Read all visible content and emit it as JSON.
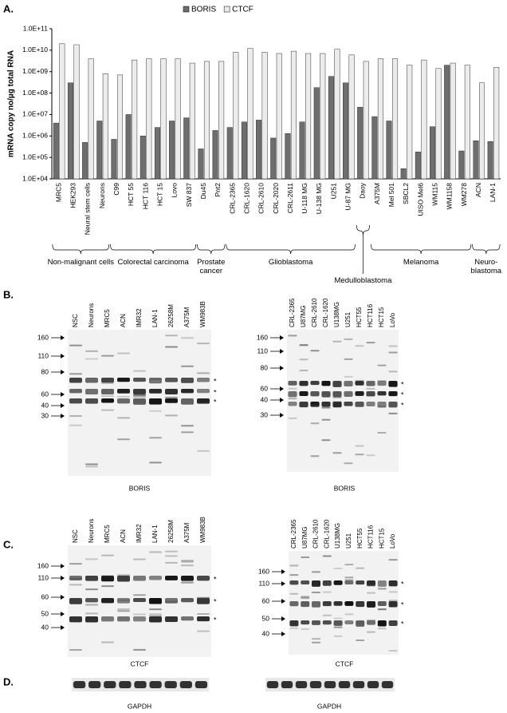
{
  "chart_data": {
    "type": "bar",
    "panel_label": "A.",
    "ylabel": "mRNA copy no/µg total RNA",
    "log_scale": true,
    "ylim": [
      10000,
      100000000000
    ],
    "yticks": [
      {
        "value": 10000,
        "label": "1.0E+04"
      },
      {
        "value": 100000,
        "label": "1.0E+05"
      },
      {
        "value": 1000000,
        "label": "1.0E+06"
      },
      {
        "value": 10000000,
        "label": "1.0E+07"
      },
      {
        "value": 100000000,
        "label": "1.0E+08"
      },
      {
        "value": 1000000000,
        "label": "1.0E+09"
      },
      {
        "value": 10000000000,
        "label": "1.0E+10"
      },
      {
        "value": 100000000000,
        "label": "1.0E+11"
      }
    ],
    "categories": [
      "MRC5",
      "HEK293",
      "Neural stem cells",
      "Neurons",
      "C99",
      "HCT 55",
      "HCT 116",
      "HCT 15",
      "Lovo",
      "SW 837",
      "Du45",
      "Pnt2",
      "CRL-2365",
      "CRL-1620",
      "CRL-2610",
      "CRL-2020",
      "CRL-2611",
      "U-118 MG",
      "U-138 MG",
      "U251",
      "U-87 MG",
      "Daoy",
      "A375M",
      "Mel 501",
      "SBCL2",
      "UISO Mel6",
      "WM115",
      "WM1158",
      "WM278",
      "ACN",
      "LAN-1"
    ],
    "series": [
      {
        "name": "BORIS",
        "color": "#6e6e6e",
        "values": [
          4000000,
          300000000,
          500000,
          5000000,
          700000,
          10000000,
          1000000,
          2500000,
          5000000,
          7000000,
          250000,
          1800000,
          2500000,
          4500000,
          5500000,
          800000,
          1300000,
          4500000,
          180000000,
          600000000,
          300000000,
          22000000,
          8000000,
          5000000,
          30000,
          180000,
          2700000,
          2000000000,
          200000,
          600000,
          550000
        ]
      },
      {
        "name": "CTCF",
        "color": "#ececec",
        "values": [
          20000000000,
          18000000000,
          4000000000,
          800000000,
          700000000,
          3500000000,
          4000000000,
          4000000000,
          4000000000,
          2500000000,
          3000000000,
          3000000000,
          8000000000,
          12000000000,
          8000000000,
          7000000000,
          9000000000,
          7000000000,
          7000000000,
          11000000000,
          6000000000,
          3000000000,
          4000000000,
          4000000000,
          2000000000,
          3500000000,
          1400000000,
          2500000000,
          2000000000,
          300000000,
          1600000000
        ]
      }
    ],
    "groups": [
      "Non-malignant cells",
      "Colorectal carcinoma",
      "Prostate cancer",
      "Glioblastoma",
      "Medulloblastoma",
      "Melanoma",
      "Neuro-blastoma"
    ]
  },
  "panels": [
    {
      "label": "B.",
      "blots": [
        {
          "lanes": [
            "NSC",
            "Neurons",
            "MRC5",
            "ACN",
            "IMR32",
            "LAN-1",
            "26258M",
            "A375M",
            "WM983B"
          ],
          "markers": [
            160,
            110,
            80,
            60,
            40,
            30
          ],
          "asterisk": "*",
          "caption": "BORIS"
        },
        {
          "lanes": [
            "CRL-2365",
            "U87MG",
            "CRL-2610",
            "CRL-1620",
            "U138MG",
            "U251",
            "HCT55",
            "HCT116",
            "HCT15",
            "LoVo"
          ],
          "markers": [
            160,
            110,
            80,
            60,
            40,
            30
          ],
          "asterisk": "*",
          "caption": "BORIS"
        }
      ]
    },
    {
      "label": "C.",
      "blots": [
        {
          "lanes": [
            "NSC",
            "Neurons",
            "MRC5",
            "ACN",
            "IMR32",
            "LAN-1",
            "26258M",
            "A375M",
            "WM983B"
          ],
          "markers": [
            160,
            110,
            60,
            50,
            40
          ],
          "asterisk": "*",
          "caption": "CTCF"
        },
        {
          "lanes": [
            "CRL-2365",
            "U87MG",
            "CRL-2610",
            "CRL-1620",
            "U138MG",
            "U251",
            "HCT55",
            "HCT116",
            "HCT15",
            "LoVo"
          ],
          "markers": [
            160,
            110,
            60,
            50,
            40
          ],
          "asterisk": "*",
          "caption": "CTCF"
        }
      ]
    },
    {
      "label": "D.",
      "blots": [
        {
          "caption": "GAPDH"
        },
        {
          "caption": "GAPDH"
        }
      ]
    }
  ]
}
